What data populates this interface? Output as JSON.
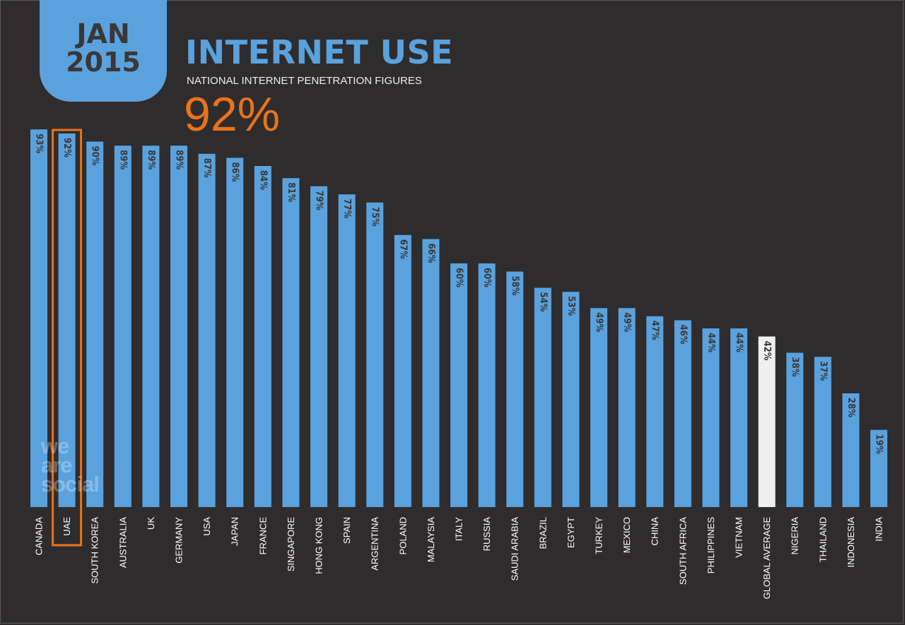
{
  "header": {
    "badge_month": "JAN",
    "badge_year": "2015",
    "title": "INTERNET USE",
    "subtitle": "NATIONAL INTERNET PENETRATION FIGURES",
    "highlight_value": "92%"
  },
  "watermark": [
    "we",
    "are",
    "social"
  ],
  "colors": {
    "background": "#2f2c2d",
    "bar": "#5aa2dd",
    "bar_global_average": "#f0f0ee",
    "highlight": "#e9731b",
    "value_label": "#3a3737",
    "axis_label": "#ffffff"
  },
  "chart_data": {
    "type": "bar",
    "title": "INTERNET USE",
    "subtitle": "NATIONAL INTERNET PENETRATION FIGURES",
    "categories": [
      "CANADA",
      "UAE",
      "SOUTH KOREA",
      "AUSTRALIA",
      "UK",
      "GERMANY",
      "USA",
      "JAPAN",
      "FRANCE",
      "SINGAPORE",
      "HONG KONG",
      "SPAIN",
      "ARGENTINA",
      "POLAND",
      "MALAYSIA",
      "ITALY",
      "RUSSIA",
      "SAUDI ARABIA",
      "BRAZIL",
      "EGYPT",
      "TURKEY",
      "MEXICO",
      "CHINA",
      "SOUTH AFRICA",
      "PHILIPPINES",
      "VIETNAM",
      "GLOBAL AVERAGE",
      "NIGERIA",
      "THAILAND",
      "INDONESIA",
      "INDIA"
    ],
    "values": [
      93,
      92,
      90,
      89,
      89,
      89,
      87,
      86,
      84,
      81,
      79,
      77,
      75,
      67,
      66,
      60,
      60,
      58,
      54,
      53,
      49,
      49,
      47,
      46,
      44,
      44,
      42,
      38,
      37,
      28,
      19
    ],
    "value_labels": [
      "93%",
      "92%",
      "90%",
      "89%",
      "89%",
      "89%",
      "87%",
      "86%",
      "84%",
      "81%",
      "79%",
      "77%",
      "75%",
      "67%",
      "66%",
      "60%",
      "60%",
      "58%",
      "54%",
      "53%",
      "49%",
      "49%",
      "47%",
      "46%",
      "44%",
      "44%",
      "42%",
      "38%",
      "37%",
      "28%",
      "19%"
    ],
    "highlighted_category": "UAE",
    "special_category": "GLOBAL AVERAGE",
    "ylim": [
      0,
      100
    ],
    "grid": false,
    "legend": "none"
  }
}
